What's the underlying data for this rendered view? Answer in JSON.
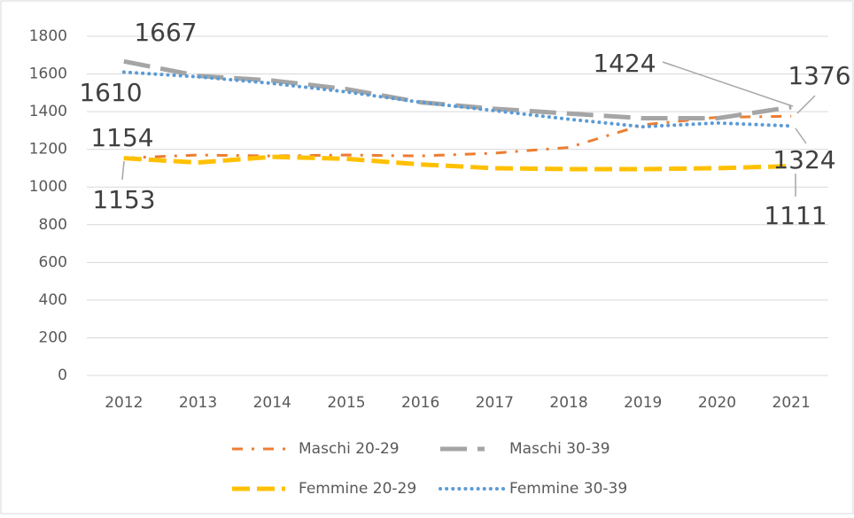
{
  "chart_data": {
    "type": "line",
    "categories": [
      "2012",
      "2013",
      "2014",
      "2015",
      "2016",
      "2017",
      "2018",
      "2019",
      "2020",
      "2021"
    ],
    "series": [
      {
        "name": "Maschi 20-29",
        "color": "#ed7d31",
        "values": [
          1154,
          1170,
          1165,
          1170,
          1165,
          1180,
          1210,
          1330,
          1370,
          1376
        ]
      },
      {
        "name": "Maschi 30-39",
        "color": "#a5a5a5",
        "values": [
          1667,
          1590,
          1565,
          1520,
          1450,
          1415,
          1390,
          1365,
          1365,
          1424
        ]
      },
      {
        "name": "Femmine 20-29",
        "color": "#ffc000",
        "values": [
          1153,
          1130,
          1160,
          1150,
          1120,
          1100,
          1095,
          1095,
          1100,
          1111
        ]
      },
      {
        "name": "Femmine 30-39",
        "color": "#5b9bd5",
        "values": [
          1610,
          1585,
          1550,
          1505,
          1450,
          1405,
          1360,
          1320,
          1340,
          1324
        ]
      }
    ],
    "ylim": [
      0,
      1800
    ],
    "yticks": [
      0,
      200,
      400,
      600,
      800,
      1000,
      1200,
      1400,
      1600,
      1800
    ],
    "grid": true,
    "legend": "bottom"
  }
}
